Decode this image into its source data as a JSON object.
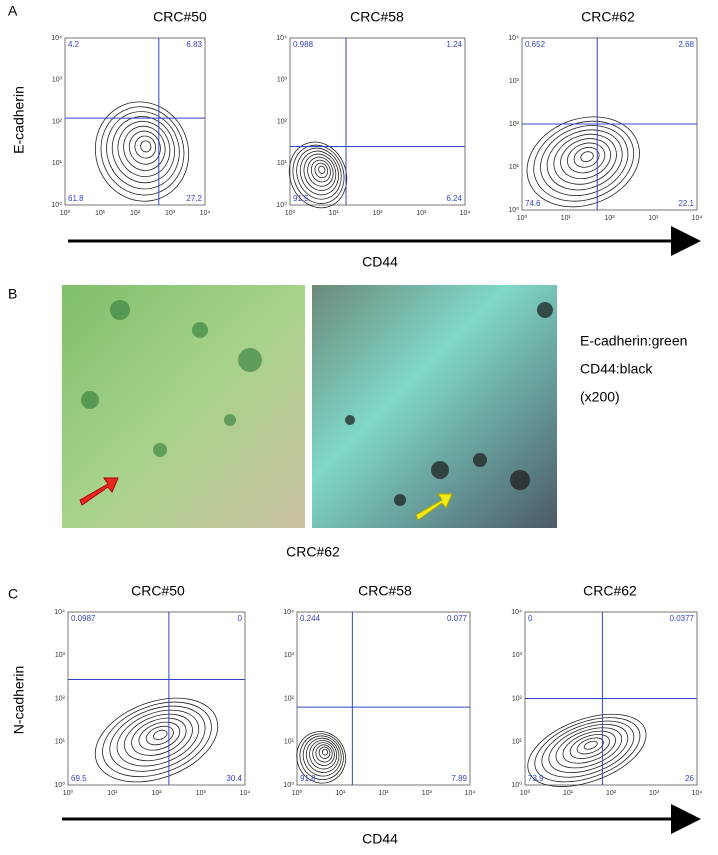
{
  "axis_ticks": [
    "10⁰",
    "10¹",
    "10²",
    "10³",
    "10⁴"
  ],
  "panels": [
    {
      "label": "A",
      "y_label": "E-cadherin",
      "x_label": "CD44",
      "plots": [
        {
          "title": "CRC#50",
          "quadrants": [
            "4.2",
            "6.83",
            "61.8",
            "27.2"
          ]
        },
        {
          "title": "CRC#58",
          "quadrants": [
            "0.988",
            "1.24",
            "91.5",
            "6.24"
          ]
        },
        {
          "title": "CRC#62",
          "quadrants": [
            "0.652",
            "2.68",
            "74.6",
            "22.1"
          ]
        }
      ]
    },
    {
      "label": "B",
      "caption": "CRC#62",
      "legend": [
        "E-cadherin:green",
        "CD44:black",
        "(x200)"
      ]
    },
    {
      "label": "C",
      "y_label": "N-cadherin",
      "x_label": "CD44",
      "plots": [
        {
          "title": "CRC#50",
          "quadrants": [
            "0.0987",
            "0",
            "69.5",
            "30.4"
          ]
        },
        {
          "title": "CRC#58",
          "quadrants": [
            "0.244",
            "0.077",
            "91.8",
            "7.89"
          ]
        },
        {
          "title": "CRC#62",
          "quadrants": [
            "0",
            "0.0377",
            "73.9",
            "26"
          ]
        }
      ]
    }
  ]
}
